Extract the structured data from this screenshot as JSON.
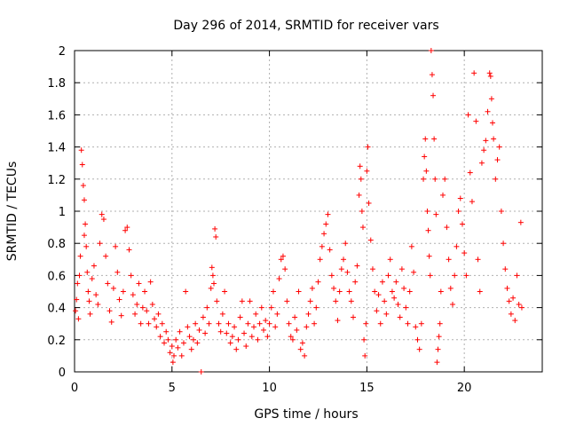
{
  "chart_data": {
    "type": "scatter",
    "title": "Day 296 of 2014, SRMTID for receiver vars",
    "xlabel": "GPS time / hours",
    "ylabel": "SRMTID / TECUs",
    "xlim": [
      0,
      24
    ],
    "ylim": [
      0,
      2
    ],
    "xticks": [
      0,
      5,
      10,
      15,
      20
    ],
    "xtick_labels": [
      "0",
      "5",
      "10",
      "15",
      "20"
    ],
    "yticks": [
      0,
      0.2,
      0.4,
      0.6,
      0.8,
      1,
      1.2,
      1.4,
      1.6,
      1.8,
      2
    ],
    "ytick_labels": [
      "0",
      "0.2",
      "0.4",
      "0.6",
      "0.8",
      "1",
      "1.2",
      "1.4",
      "1.6",
      "1.8",
      "2"
    ],
    "grid": true,
    "marker": "plus",
    "color": "#ff0000",
    "series": [
      {
        "name": "SRMTID",
        "points": [
          [
            0.05,
            0.38
          ],
          [
            0.1,
            0.45
          ],
          [
            0.15,
            0.55
          ],
          [
            0.2,
            0.33
          ],
          [
            0.25,
            0.6
          ],
          [
            0.3,
            0.72
          ],
          [
            0.35,
            1.38
          ],
          [
            0.4,
            1.29
          ],
          [
            0.45,
            1.16
          ],
          [
            0.5,
            1.07
          ],
          [
            0.5,
            0.85
          ],
          [
            0.55,
            0.92
          ],
          [
            0.6,
            0.78
          ],
          [
            0.65,
            0.62
          ],
          [
            0.7,
            0.5
          ],
          [
            0.75,
            0.44
          ],
          [
            0.8,
            0.36
          ],
          [
            0.9,
            0.58
          ],
          [
            1.0,
            0.66
          ],
          [
            1.1,
            0.48
          ],
          [
            1.2,
            0.42
          ],
          [
            1.3,
            0.8
          ],
          [
            1.4,
            0.98
          ],
          [
            1.5,
            0.95
          ],
          [
            1.6,
            0.72
          ],
          [
            1.7,
            0.55
          ],
          [
            1.8,
            0.38
          ],
          [
            1.9,
            0.31
          ],
          [
            2.0,
            0.52
          ],
          [
            2.1,
            0.78
          ],
          [
            2.2,
            0.62
          ],
          [
            2.3,
            0.45
          ],
          [
            2.4,
            0.35
          ],
          [
            2.5,
            0.5
          ],
          [
            2.6,
            0.88
          ],
          [
            2.7,
            0.9
          ],
          [
            2.8,
            0.76
          ],
          [
            2.9,
            0.6
          ],
          [
            3.0,
            0.48
          ],
          [
            3.1,
            0.36
          ],
          [
            3.2,
            0.42
          ],
          [
            3.3,
            0.55
          ],
          [
            3.4,
            0.3
          ],
          [
            3.5,
            0.4
          ],
          [
            3.6,
            0.5
          ],
          [
            3.7,
            0.38
          ],
          [
            3.8,
            0.3
          ],
          [
            3.9,
            0.56
          ],
          [
            4.0,
            0.42
          ],
          [
            4.1,
            0.33
          ],
          [
            4.2,
            0.28
          ],
          [
            4.3,
            0.36
          ],
          [
            4.4,
            0.22
          ],
          [
            4.5,
            0.3
          ],
          [
            4.6,
            0.18
          ],
          [
            4.7,
            0.25
          ],
          [
            4.8,
            0.2
          ],
          [
            4.9,
            0.12
          ],
          [
            5.0,
            0.16
          ],
          [
            5.05,
            0.06
          ],
          [
            5.1,
            0.1
          ],
          [
            5.2,
            0.2
          ],
          [
            5.3,
            0.15
          ],
          [
            5.4,
            0.25
          ],
          [
            5.5,
            0.1
          ],
          [
            5.6,
            0.18
          ],
          [
            5.7,
            0.5
          ],
          [
            5.8,
            0.28
          ],
          [
            5.9,
            0.22
          ],
          [
            6.0,
            0.14
          ],
          [
            6.1,
            0.2
          ],
          [
            6.2,
            0.3
          ],
          [
            6.3,
            0.18
          ],
          [
            6.4,
            0.26
          ],
          [
            6.5,
            0.0
          ],
          [
            6.6,
            0.34
          ],
          [
            6.7,
            0.24
          ],
          [
            6.8,
            0.4
          ],
          [
            6.9,
            0.3
          ],
          [
            7.0,
            0.52
          ],
          [
            7.05,
            0.65
          ],
          [
            7.1,
            0.6
          ],
          [
            7.15,
            0.55
          ],
          [
            7.2,
            0.89
          ],
          [
            7.25,
            0.84
          ],
          [
            7.3,
            0.44
          ],
          [
            7.4,
            0.3
          ],
          [
            7.5,
            0.25
          ],
          [
            7.6,
            0.36
          ],
          [
            7.7,
            0.5
          ],
          [
            7.8,
            0.24
          ],
          [
            7.9,
            0.3
          ],
          [
            8.0,
            0.18
          ],
          [
            8.1,
            0.22
          ],
          [
            8.2,
            0.28
          ],
          [
            8.3,
            0.14
          ],
          [
            8.4,
            0.2
          ],
          [
            8.5,
            0.34
          ],
          [
            8.6,
            0.44
          ],
          [
            8.7,
            0.24
          ],
          [
            8.8,
            0.16
          ],
          [
            8.9,
            0.3
          ],
          [
            9.0,
            0.44
          ],
          [
            9.1,
            0.22
          ],
          [
            9.2,
            0.28
          ],
          [
            9.3,
            0.36
          ],
          [
            9.4,
            0.2
          ],
          [
            9.5,
            0.3
          ],
          [
            9.6,
            0.4
          ],
          [
            9.7,
            0.26
          ],
          [
            9.8,
            0.32
          ],
          [
            9.9,
            0.22
          ],
          [
            10.0,
            0.3
          ],
          [
            10.1,
            0.4
          ],
          [
            10.2,
            0.5
          ],
          [
            10.3,
            0.28
          ],
          [
            10.4,
            0.36
          ],
          [
            10.5,
            0.58
          ],
          [
            10.6,
            0.7
          ],
          [
            10.7,
            0.72
          ],
          [
            10.8,
            0.64
          ],
          [
            10.9,
            0.44
          ],
          [
            11.0,
            0.3
          ],
          [
            11.1,
            0.22
          ],
          [
            11.2,
            0.2
          ],
          [
            11.3,
            0.34
          ],
          [
            11.4,
            0.26
          ],
          [
            11.5,
            0.5
          ],
          [
            11.6,
            0.14
          ],
          [
            11.7,
            0.18
          ],
          [
            11.8,
            0.1
          ],
          [
            11.9,
            0.28
          ],
          [
            12.0,
            0.36
          ],
          [
            12.1,
            0.44
          ],
          [
            12.2,
            0.52
          ],
          [
            12.3,
            0.3
          ],
          [
            12.4,
            0.4
          ],
          [
            12.5,
            0.56
          ],
          [
            12.6,
            0.7
          ],
          [
            12.7,
            0.78
          ],
          [
            12.8,
            0.86
          ],
          [
            12.9,
            0.92
          ],
          [
            13.0,
            0.98
          ],
          [
            13.1,
            0.76
          ],
          [
            13.2,
            0.6
          ],
          [
            13.3,
            0.52
          ],
          [
            13.4,
            0.44
          ],
          [
            13.5,
            0.32
          ],
          [
            13.6,
            0.5
          ],
          [
            13.7,
            0.64
          ],
          [
            13.8,
            0.7
          ],
          [
            13.9,
            0.8
          ],
          [
            14.0,
            0.62
          ],
          [
            14.1,
            0.5
          ],
          [
            14.2,
            0.44
          ],
          [
            14.3,
            0.34
          ],
          [
            14.4,
            0.56
          ],
          [
            14.5,
            0.66
          ],
          [
            14.6,
            1.1
          ],
          [
            14.65,
            1.28
          ],
          [
            14.7,
            1.2
          ],
          [
            14.75,
            1.0
          ],
          [
            14.8,
            0.9
          ],
          [
            14.85,
            0.2
          ],
          [
            14.9,
            0.1
          ],
          [
            14.95,
            0.3
          ],
          [
            15.0,
            1.25
          ],
          [
            15.05,
            1.4
          ],
          [
            15.1,
            1.05
          ],
          [
            15.2,
            0.82
          ],
          [
            15.3,
            0.64
          ],
          [
            15.4,
            0.5
          ],
          [
            15.5,
            0.38
          ],
          [
            15.6,
            0.48
          ],
          [
            15.7,
            0.3
          ],
          [
            15.8,
            0.56
          ],
          [
            15.9,
            0.44
          ],
          [
            16.0,
            0.36
          ],
          [
            16.1,
            0.6
          ],
          [
            16.2,
            0.7
          ],
          [
            16.3,
            0.5
          ],
          [
            16.4,
            0.46
          ],
          [
            16.5,
            0.56
          ],
          [
            16.6,
            0.42
          ],
          [
            16.7,
            0.34
          ],
          [
            16.8,
            0.64
          ],
          [
            16.9,
            0.52
          ],
          [
            17.0,
            0.4
          ],
          [
            17.1,
            0.3
          ],
          [
            17.2,
            0.5
          ],
          [
            17.3,
            0.78
          ],
          [
            17.4,
            0.62
          ],
          [
            17.5,
            0.28
          ],
          [
            17.6,
            0.2
          ],
          [
            17.7,
            0.14
          ],
          [
            17.8,
            0.3
          ],
          [
            17.9,
            1.2
          ],
          [
            17.95,
            1.34
          ],
          [
            18.0,
            1.45
          ],
          [
            18.05,
            1.25
          ],
          [
            18.1,
            1.0
          ],
          [
            18.15,
            0.88
          ],
          [
            18.2,
            0.72
          ],
          [
            18.25,
            0.6
          ],
          [
            18.3,
            2.0
          ],
          [
            18.35,
            1.85
          ],
          [
            18.4,
            1.72
          ],
          [
            18.45,
            1.45
          ],
          [
            18.5,
            1.2
          ],
          [
            18.55,
            0.98
          ],
          [
            18.6,
            0.06
          ],
          [
            18.65,
            0.14
          ],
          [
            18.7,
            0.22
          ],
          [
            18.75,
            0.3
          ],
          [
            18.8,
            0.5
          ],
          [
            18.9,
            1.1
          ],
          [
            19.0,
            1.2
          ],
          [
            19.1,
            0.9
          ],
          [
            19.2,
            0.7
          ],
          [
            19.3,
            0.52
          ],
          [
            19.4,
            0.42
          ],
          [
            19.5,
            0.6
          ],
          [
            19.6,
            0.78
          ],
          [
            19.7,
            1.0
          ],
          [
            19.8,
            1.08
          ],
          [
            19.9,
            0.92
          ],
          [
            20.0,
            0.74
          ],
          [
            20.1,
            0.6
          ],
          [
            20.2,
            1.6
          ],
          [
            20.3,
            1.24
          ],
          [
            20.4,
            1.06
          ],
          [
            20.5,
            1.86
          ],
          [
            20.6,
            1.56
          ],
          [
            20.7,
            0.7
          ],
          [
            20.8,
            0.5
          ],
          [
            20.9,
            1.3
          ],
          [
            21.0,
            1.38
          ],
          [
            21.1,
            1.44
          ],
          [
            21.2,
            1.62
          ],
          [
            21.3,
            1.86
          ],
          [
            21.35,
            1.84
          ],
          [
            21.4,
            1.7
          ],
          [
            21.45,
            1.55
          ],
          [
            21.5,
            1.45
          ],
          [
            21.6,
            1.2
          ],
          [
            21.7,
            1.32
          ],
          [
            21.8,
            1.4
          ],
          [
            21.9,
            1.0
          ],
          [
            22.0,
            0.8
          ],
          [
            22.1,
            0.64
          ],
          [
            22.2,
            0.52
          ],
          [
            22.3,
            0.44
          ],
          [
            22.4,
            0.36
          ],
          [
            22.5,
            0.46
          ],
          [
            22.6,
            0.32
          ],
          [
            22.7,
            0.6
          ],
          [
            22.8,
            0.42
          ],
          [
            22.9,
            0.93
          ],
          [
            22.95,
            0.4
          ]
        ]
      }
    ]
  }
}
